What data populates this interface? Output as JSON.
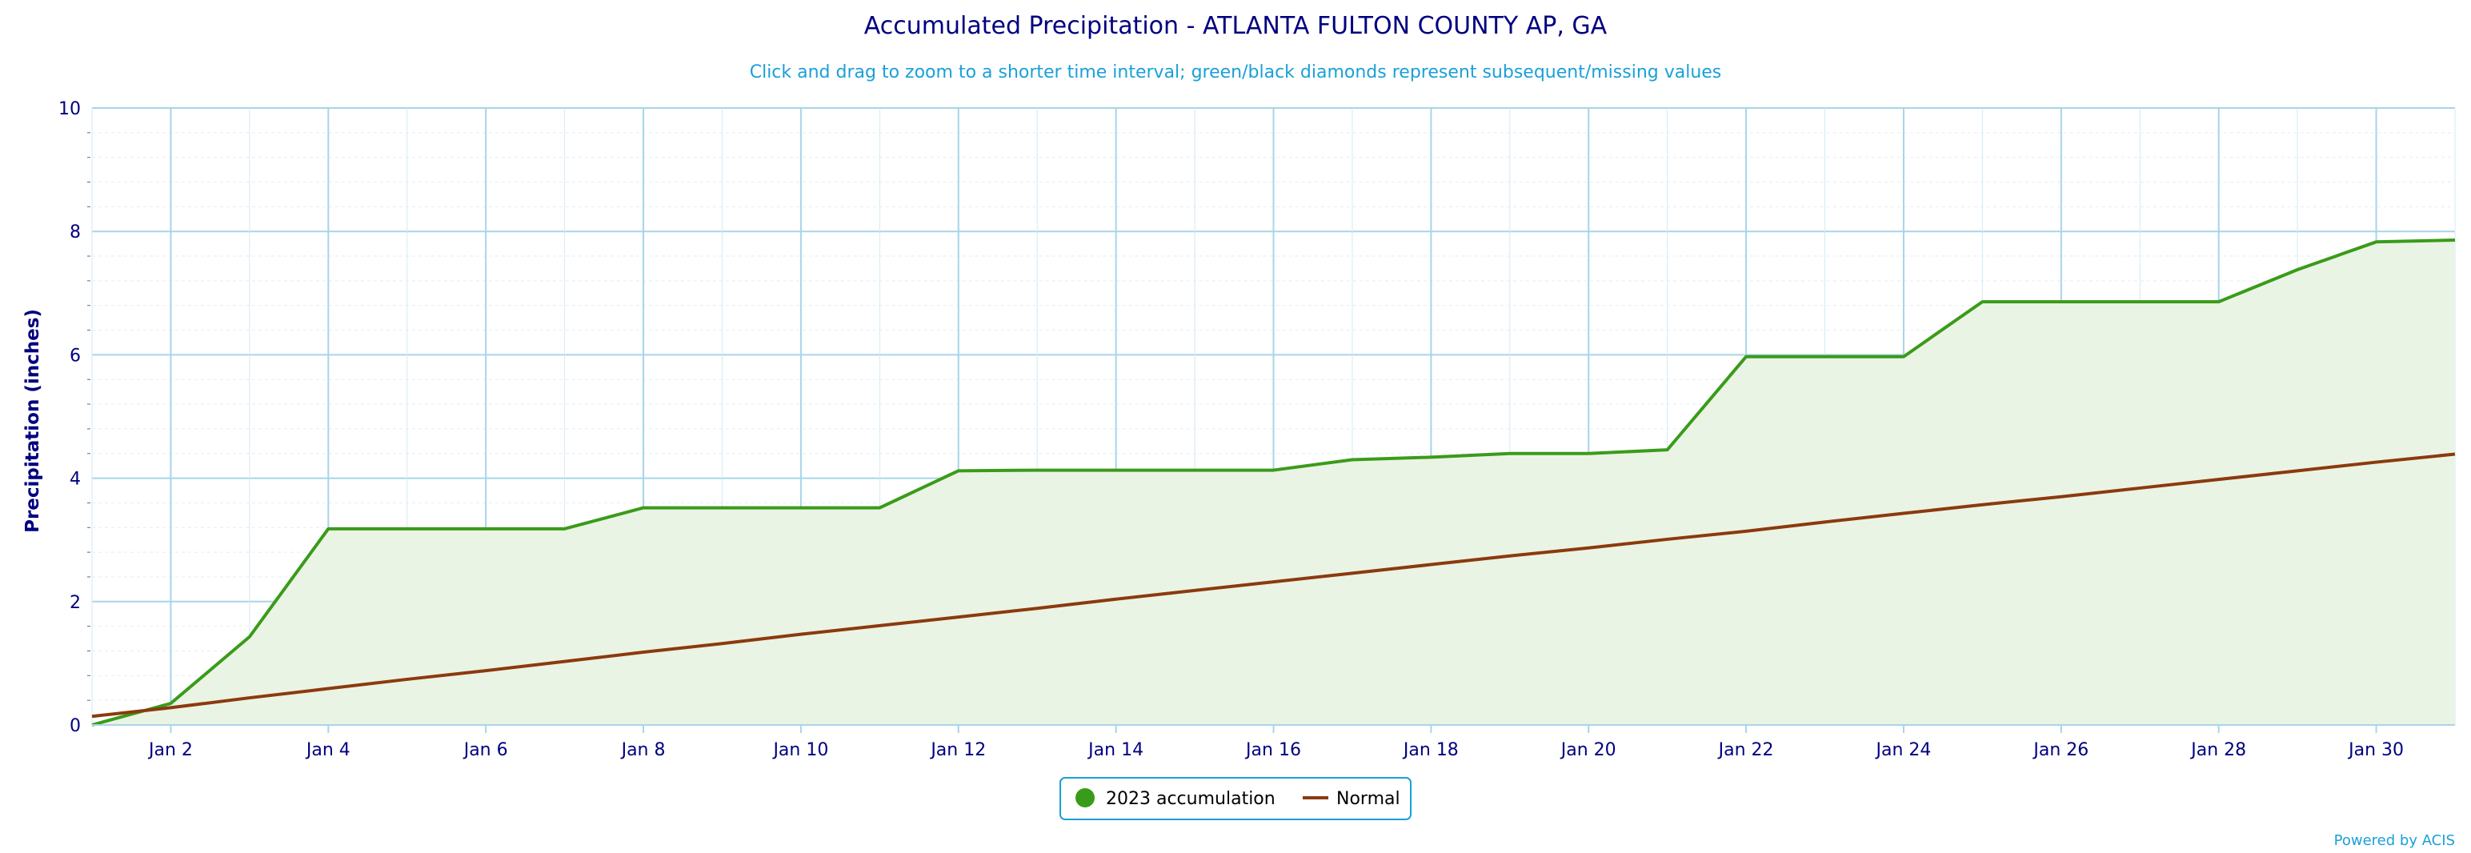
{
  "chart_data": {
    "type": "area",
    "title": "Accumulated Precipitation - ATLANTA FULTON COUNTY AP, GA",
    "subtitle": "Click and drag to zoom to a shorter time interval; green/black diamonds represent subsequent/missing values",
    "xlabel": "",
    "ylabel": "Precipitation (inches)",
    "x_tick_labels": [
      "Jan 2",
      "Jan 4",
      "Jan 6",
      "Jan 8",
      "Jan 10",
      "Jan 12",
      "Jan 14",
      "Jan 16",
      "Jan 18",
      "Jan 20",
      "Jan 22",
      "Jan 24",
      "Jan 26",
      "Jan 28",
      "Jan 30"
    ],
    "x_tick_days": [
      2,
      4,
      6,
      8,
      10,
      12,
      14,
      16,
      18,
      20,
      22,
      24,
      26,
      28,
      30
    ],
    "y_ticks": [
      0,
      2,
      4,
      6,
      8,
      10
    ],
    "xlim": [
      1,
      31
    ],
    "ylim": [
      0,
      10
    ],
    "grid": true,
    "legend_position": "bottom-center",
    "x": [
      1,
      2,
      3,
      4,
      5,
      6,
      7,
      8,
      9,
      10,
      11,
      12,
      13,
      14,
      15,
      16,
      17,
      18,
      19,
      20,
      21,
      22,
      23,
      24,
      25,
      26,
      27,
      28,
      29,
      30,
      31
    ],
    "series": [
      {
        "name": "2023 accumulation",
        "color": "#3a9b1a",
        "fill": "#eaf4e4",
        "values": [
          0.0,
          0.35,
          1.43,
          3.18,
          3.18,
          3.18,
          3.18,
          3.52,
          3.52,
          3.52,
          3.52,
          4.12,
          4.13,
          4.13,
          4.13,
          4.13,
          4.3,
          4.34,
          4.4,
          4.4,
          4.46,
          5.97,
          5.97,
          5.97,
          6.86,
          6.86,
          6.86,
          6.86,
          7.38,
          7.83,
          7.86
        ]
      },
      {
        "name": "Normal",
        "color": "#8b3a0e",
        "values": [
          0.14,
          0.28,
          0.44,
          0.59,
          0.74,
          0.88,
          1.03,
          1.18,
          1.32,
          1.47,
          1.61,
          1.75,
          1.89,
          2.04,
          2.18,
          2.32,
          2.46,
          2.6,
          2.74,
          2.87,
          3.01,
          3.14,
          3.29,
          3.43,
          3.57,
          3.7,
          3.84,
          3.98,
          4.12,
          4.26,
          4.39
        ]
      }
    ]
  },
  "credit": "Powered by ACIS",
  "colors": {
    "title": "#000080",
    "subtitle": "#1aa0d8",
    "axis_text": "#000080",
    "grid": "#a8d4ea",
    "legend_border": "#1aa0d8",
    "credit": "#1aa0d8"
  }
}
